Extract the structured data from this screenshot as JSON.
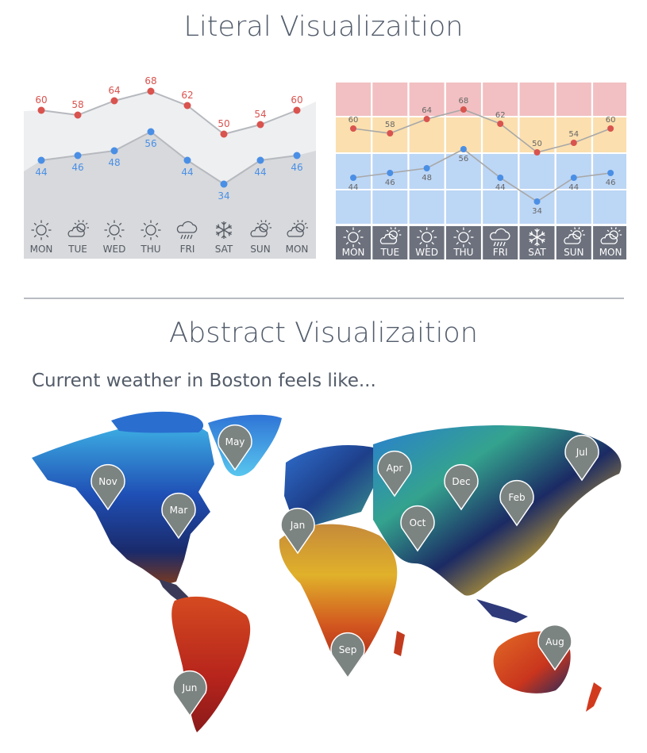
{
  "literal": {
    "title": "Literal Visualizaition",
    "days": [
      "MON",
      "TUE",
      "WED",
      "THU",
      "FRI",
      "SAT",
      "SUN",
      "MON"
    ],
    "icons": [
      "sun-icon",
      "partly-cloudy-icon",
      "sun-icon",
      "sun-icon",
      "rain-cloud-icon",
      "snowflake-icon",
      "partly-cloudy-icon",
      "partly-cloudy-icon"
    ],
    "high": [
      60,
      58,
      64,
      68,
      62,
      50,
      54,
      60
    ],
    "low": [
      44,
      46,
      48,
      56,
      44,
      34,
      44,
      46
    ]
  },
  "abstract": {
    "title": "Abstract Visualizaition",
    "subtitle": "Current weather in Boston feels like...",
    "pins": [
      "May",
      "Nov",
      "Mar",
      "Apr",
      "Dec",
      "Jul",
      "Feb",
      "Jan",
      "Oct",
      "Sep",
      "Aug",
      "Jun"
    ]
  },
  "colors": {
    "high": "#d9534f",
    "low": "#4a8fe6",
    "band_hot": "#f2c0c2",
    "band_warm": "#fbdfae",
    "band_cool": "#bcd6f5",
    "day_bar": "#6c717d",
    "pin": "#7c8482",
    "title": "#525c6b"
  }
}
